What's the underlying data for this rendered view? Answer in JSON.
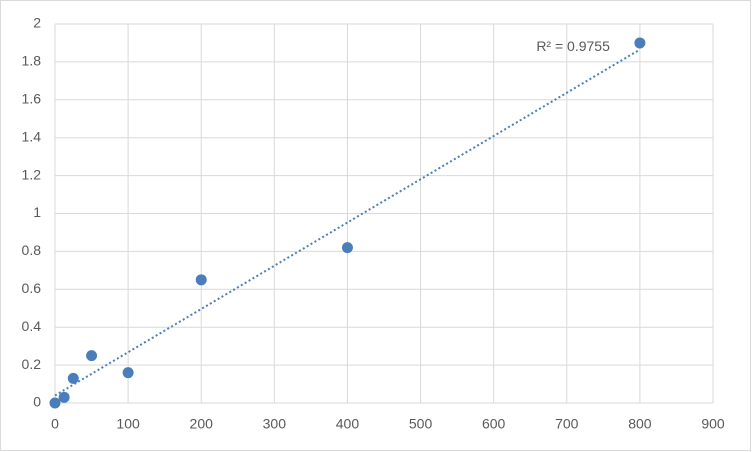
{
  "chart_data": {
    "type": "scatter",
    "x": [
      0,
      12.5,
      25,
      50,
      100,
      200,
      400,
      800
    ],
    "series": [
      {
        "color": "#4a7ebb",
        "values": [
          0,
          0.03,
          0.13,
          0.25,
          0.16,
          0.65,
          0.82,
          1.9
        ]
      }
    ],
    "xlim": [
      0,
      900
    ],
    "xticks": [
      0,
      100,
      200,
      300,
      400,
      500,
      600,
      700,
      800,
      900
    ],
    "ylim": [
      0,
      2
    ],
    "yticks": [
      0,
      0.2,
      0.4,
      0.6,
      0.8,
      1,
      1.2,
      1.4,
      1.6,
      1.8,
      2
    ],
    "grid": true,
    "trendline": "linear",
    "annotation": "R² = 0.9755"
  }
}
